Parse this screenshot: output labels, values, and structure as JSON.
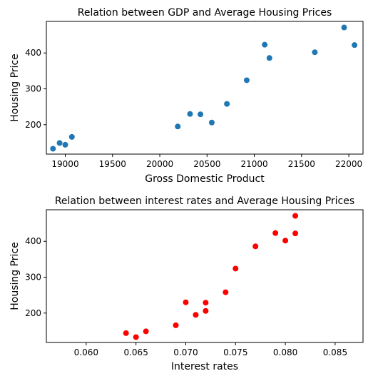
{
  "chart_data": [
    {
      "type": "scatter",
      "title": "Relation between GDP and Average Housing Prices",
      "xlabel": "Gross Domestic Product",
      "ylabel": "Housing Price",
      "xlim": [
        18800,
        22150
      ],
      "ylim": [
        118,
        488
      ],
      "xticks": [
        19000,
        19500,
        20000,
        20500,
        21000,
        21500,
        22000
      ],
      "xtick_labels": [
        "19000",
        "19500",
        "20000",
        "20500",
        "21000",
        "21500",
        "22000"
      ],
      "yticks": [
        200,
        300,
        400
      ],
      "ytick_labels": [
        "200",
        "300",
        "400"
      ],
      "grid": false,
      "color": "#1f77b4",
      "points": [
        {
          "x": 18870,
          "y": 133
        },
        {
          "x": 18940,
          "y": 149
        },
        {
          "x": 19000,
          "y": 144
        },
        {
          "x": 19070,
          "y": 166
        },
        {
          "x": 20190,
          "y": 195
        },
        {
          "x": 20320,
          "y": 230
        },
        {
          "x": 20430,
          "y": 229
        },
        {
          "x": 20550,
          "y": 206
        },
        {
          "x": 20710,
          "y": 258
        },
        {
          "x": 20920,
          "y": 324
        },
        {
          "x": 21110,
          "y": 423
        },
        {
          "x": 21160,
          "y": 386
        },
        {
          "x": 21640,
          "y": 402
        },
        {
          "x": 21950,
          "y": 471
        },
        {
          "x": 22060,
          "y": 422
        }
      ]
    },
    {
      "type": "scatter",
      "title": "Relation between interest rates and Average Housing Prices",
      "xlabel": "Interest rates",
      "ylabel": "Housing Price",
      "xlim": [
        0.056,
        0.0878
      ],
      "ylim": [
        118,
        488
      ],
      "xticks": [
        0.06,
        0.065,
        0.07,
        0.075,
        0.08,
        0.085
      ],
      "xtick_labels": [
        "0.060",
        "0.065",
        "0.070",
        "0.075",
        "0.080",
        "0.085"
      ],
      "yticks": [
        200,
        300,
        400
      ],
      "ytick_labels": [
        "200",
        "300",
        "400"
      ],
      "grid": false,
      "color": "#ff0000",
      "points": [
        {
          "x": 0.064,
          "y": 144
        },
        {
          "x": 0.065,
          "y": 133
        },
        {
          "x": 0.066,
          "y": 149
        },
        {
          "x": 0.069,
          "y": 166
        },
        {
          "x": 0.07,
          "y": 230
        },
        {
          "x": 0.071,
          "y": 195
        },
        {
          "x": 0.072,
          "y": 229
        },
        {
          "x": 0.072,
          "y": 206
        },
        {
          "x": 0.074,
          "y": 258
        },
        {
          "x": 0.075,
          "y": 324
        },
        {
          "x": 0.077,
          "y": 386
        },
        {
          "x": 0.079,
          "y": 423
        },
        {
          "x": 0.08,
          "y": 402
        },
        {
          "x": 0.081,
          "y": 471
        },
        {
          "x": 0.081,
          "y": 422
        }
      ]
    }
  ]
}
